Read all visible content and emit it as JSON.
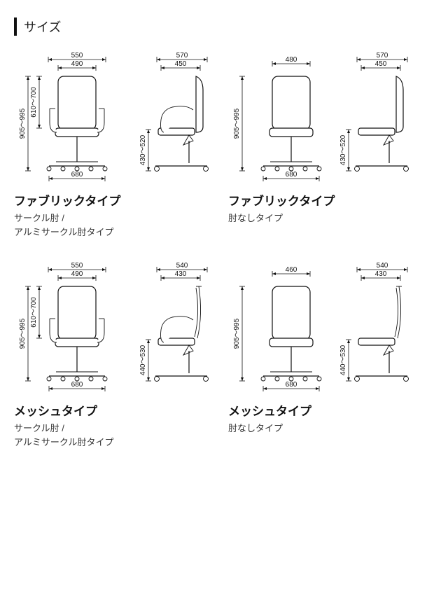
{
  "section_title": "サイズ",
  "colors": {
    "stroke": "#111111",
    "bg": "#ffffff"
  },
  "cells": [
    {
      "title": "ファブリックタイプ",
      "subtitle": "サークル肘 /\nアルミサークル肘タイプ",
      "front": {
        "has_arms": true,
        "dims": {
          "arm_span": "550",
          "back_w": "490",
          "base_w": "680",
          "h_total": "905～995",
          "h_seat": "610～700"
        }
      },
      "side": {
        "has_arms": true,
        "mesh": false,
        "dims": {
          "top_outer": "570",
          "top_inner": "450",
          "h_arm": "430～520"
        }
      }
    },
    {
      "title": "ファブリックタイプ",
      "subtitle": "肘なしタイプ",
      "front": {
        "has_arms": false,
        "dims": {
          "back_w": "480",
          "base_w": "680",
          "h_total": "905～995"
        }
      },
      "side": {
        "has_arms": false,
        "mesh": false,
        "dims": {
          "top_outer": "570",
          "top_inner": "450",
          "h_arm": "430～520"
        }
      }
    },
    {
      "title": "メッシュタイプ",
      "subtitle": "サークル肘 /\nアルミサークル肘タイプ",
      "front": {
        "has_arms": true,
        "dims": {
          "arm_span": "550",
          "back_w": "490",
          "base_w": "680",
          "h_total": "905～995",
          "h_seat": "610～700"
        }
      },
      "side": {
        "has_arms": true,
        "mesh": true,
        "dims": {
          "top_outer": "540",
          "top_inner": "430",
          "h_arm": "440～530"
        }
      }
    },
    {
      "title": "メッシュタイプ",
      "subtitle": "肘なしタイプ",
      "front": {
        "has_arms": false,
        "dims": {
          "back_w": "460",
          "base_w": "680",
          "h_total": "905～995"
        }
      },
      "side": {
        "has_arms": false,
        "mesh": true,
        "dims": {
          "top_outer": "540",
          "top_inner": "430",
          "h_arm": "440～530"
        }
      }
    }
  ]
}
